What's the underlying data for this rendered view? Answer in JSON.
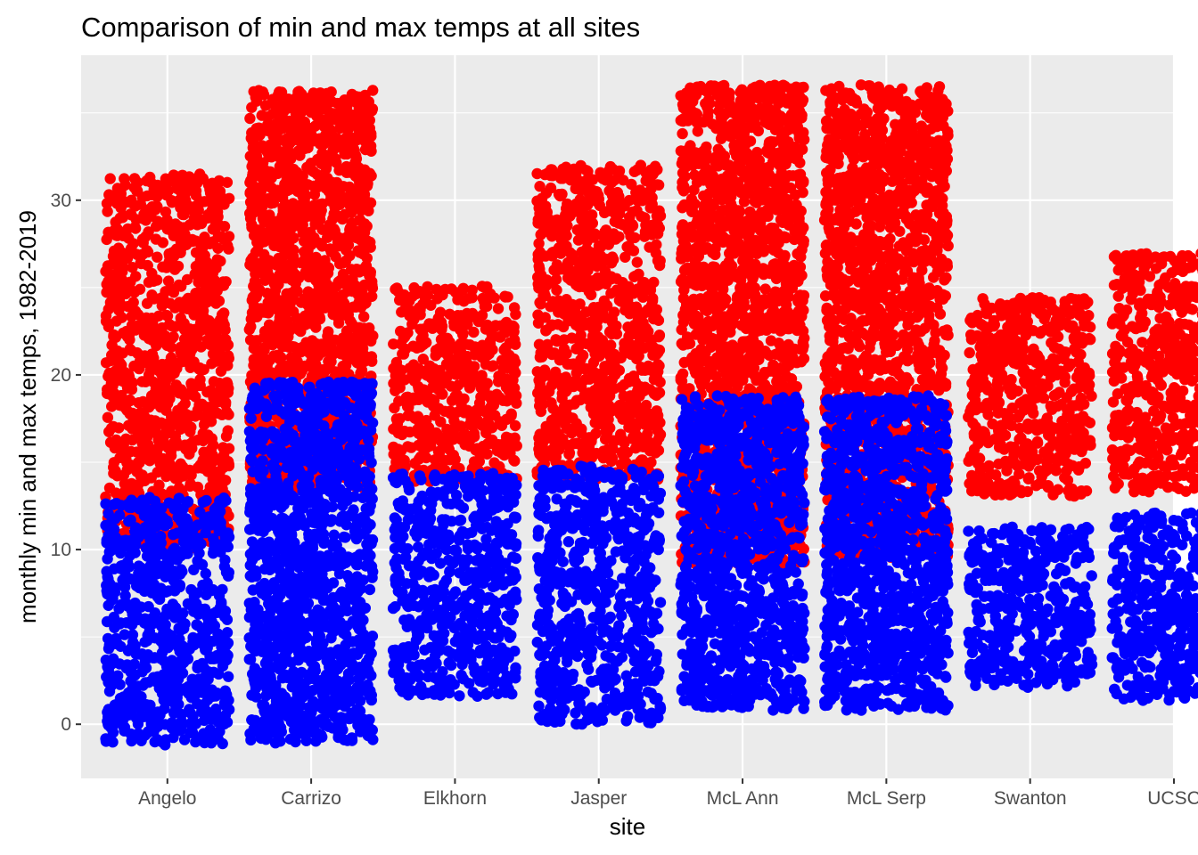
{
  "chart_data": {
    "type": "scatter",
    "title": "Comparison of min and max temps at all sites",
    "xlabel": "site",
    "ylabel": "monthly min and max temps, 1982-2019",
    "categories": [
      "Angelo",
      "Carrizo",
      "Elkhorn",
      "Jasper",
      "McL Ann",
      "McL Serp",
      "Swanton",
      "UCSC"
    ],
    "ylim": [
      -3.1,
      38.3
    ],
    "yticks": [
      "0",
      "10",
      "20",
      "30"
    ],
    "grid": true,
    "jitter": "horizontal",
    "colors": {
      "max": "#ff0000",
      "min": "#0000ff",
      "panel": "#ebebeb",
      "grid": "#ffffff"
    },
    "series": [
      {
        "name": "max",
        "color": "#ff0000",
        "ranges": [
          {
            "site": "Angelo",
            "min": 10,
            "max": 31.5
          },
          {
            "site": "Carrizo",
            "min": 13.5,
            "max": 36.3
          },
          {
            "site": "Elkhorn",
            "min": 13.9,
            "max": 25.1
          },
          {
            "site": "Jasper",
            "min": 14.0,
            "max": 32.0
          },
          {
            "site": "McL Ann",
            "min": 9.0,
            "max": 36.6
          },
          {
            "site": "McL Serp",
            "min": 9.5,
            "max": 36.6
          },
          {
            "site": "Swanton",
            "min": 13.0,
            "max": 24.5
          },
          {
            "site": "UCSC",
            "min": 13.3,
            "max": 27.0
          }
        ]
      },
      {
        "name": "min",
        "color": "#0000ff",
        "ranges": [
          {
            "site": "Angelo",
            "min": -1.2,
            "max": 13.0
          },
          {
            "site": "Carrizo",
            "min": -1.1,
            "max": 19.6
          },
          {
            "site": "Elkhorn",
            "min": 1.6,
            "max": 14.4
          },
          {
            "site": "Jasper",
            "min": 0.0,
            "max": 14.8
          },
          {
            "site": "McL Ann",
            "min": 0.8,
            "max": 18.8
          },
          {
            "site": "McL Serp",
            "min": 0.8,
            "max": 18.8
          },
          {
            "site": "Swanton",
            "min": 2.1,
            "max": 11.3
          },
          {
            "site": "UCSC",
            "min": 1.3,
            "max": 12.1
          }
        ]
      }
    ]
  }
}
